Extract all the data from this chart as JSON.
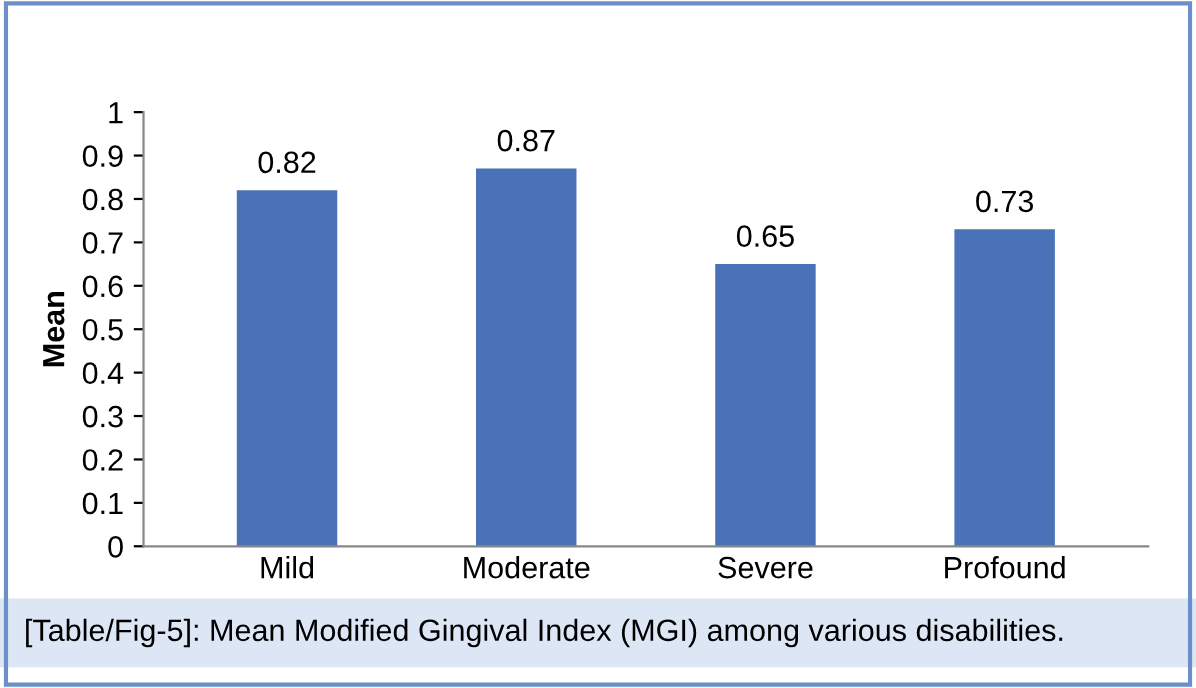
{
  "chart_data": {
    "type": "bar",
    "ylabel": "Mean",
    "categories": [
      "Mild",
      "Moderate",
      "Severe",
      "Profound"
    ],
    "values": [
      0.82,
      0.87,
      0.65,
      0.73
    ],
    "color": "#4a72b8",
    "ylim": [
      0,
      1
    ],
    "yticks": [
      0,
      0.1,
      0.2,
      0.3,
      0.4,
      0.5,
      0.6,
      0.7,
      0.8,
      0.9,
      1
    ],
    "data_labels": true,
    "grid": false,
    "legend": false,
    "annotations": [
      "[Table/Fig-5]: Mean Modified Gingival Index (MGI) among various disabilities."
    ]
  }
}
